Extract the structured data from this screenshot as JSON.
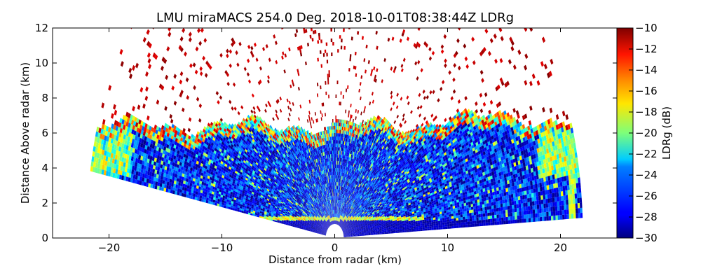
{
  "chart_data": {
    "type": "heatmap",
    "title": "LMU miraMACS 254.0 Deg. 2018-10-01T08:38:44Z  LDRg",
    "xlabel": "Distance from radar (km)",
    "ylabel": "Distance Above radar  (km)",
    "xlim": [
      -25,
      25
    ],
    "ylim": [
      0,
      12
    ],
    "x_ticks": [
      "−20",
      "−10",
      "0",
      "10",
      "20"
    ],
    "y_ticks": [
      "0",
      "2",
      "4",
      "6",
      "8",
      "10",
      "12"
    ],
    "colorbar": {
      "label": "LDRg (dB)",
      "range": [
        -30,
        -10
      ],
      "ticks": [
        "−30",
        "−28",
        "−26",
        "−24",
        "−22",
        "−20",
        "−18",
        "−16",
        "−14",
        "−12",
        "−10"
      ]
    },
    "scan": {
      "elevation_range_deg": [
        3,
        170
      ],
      "max_range_km": 22,
      "cloud_top_km": 6.2,
      "noise_ldr_db": -10,
      "in_cloud_ldr_db": -27,
      "low_layer_height_km": 1.1,
      "low_layer_ldr_db": -18
    }
  }
}
